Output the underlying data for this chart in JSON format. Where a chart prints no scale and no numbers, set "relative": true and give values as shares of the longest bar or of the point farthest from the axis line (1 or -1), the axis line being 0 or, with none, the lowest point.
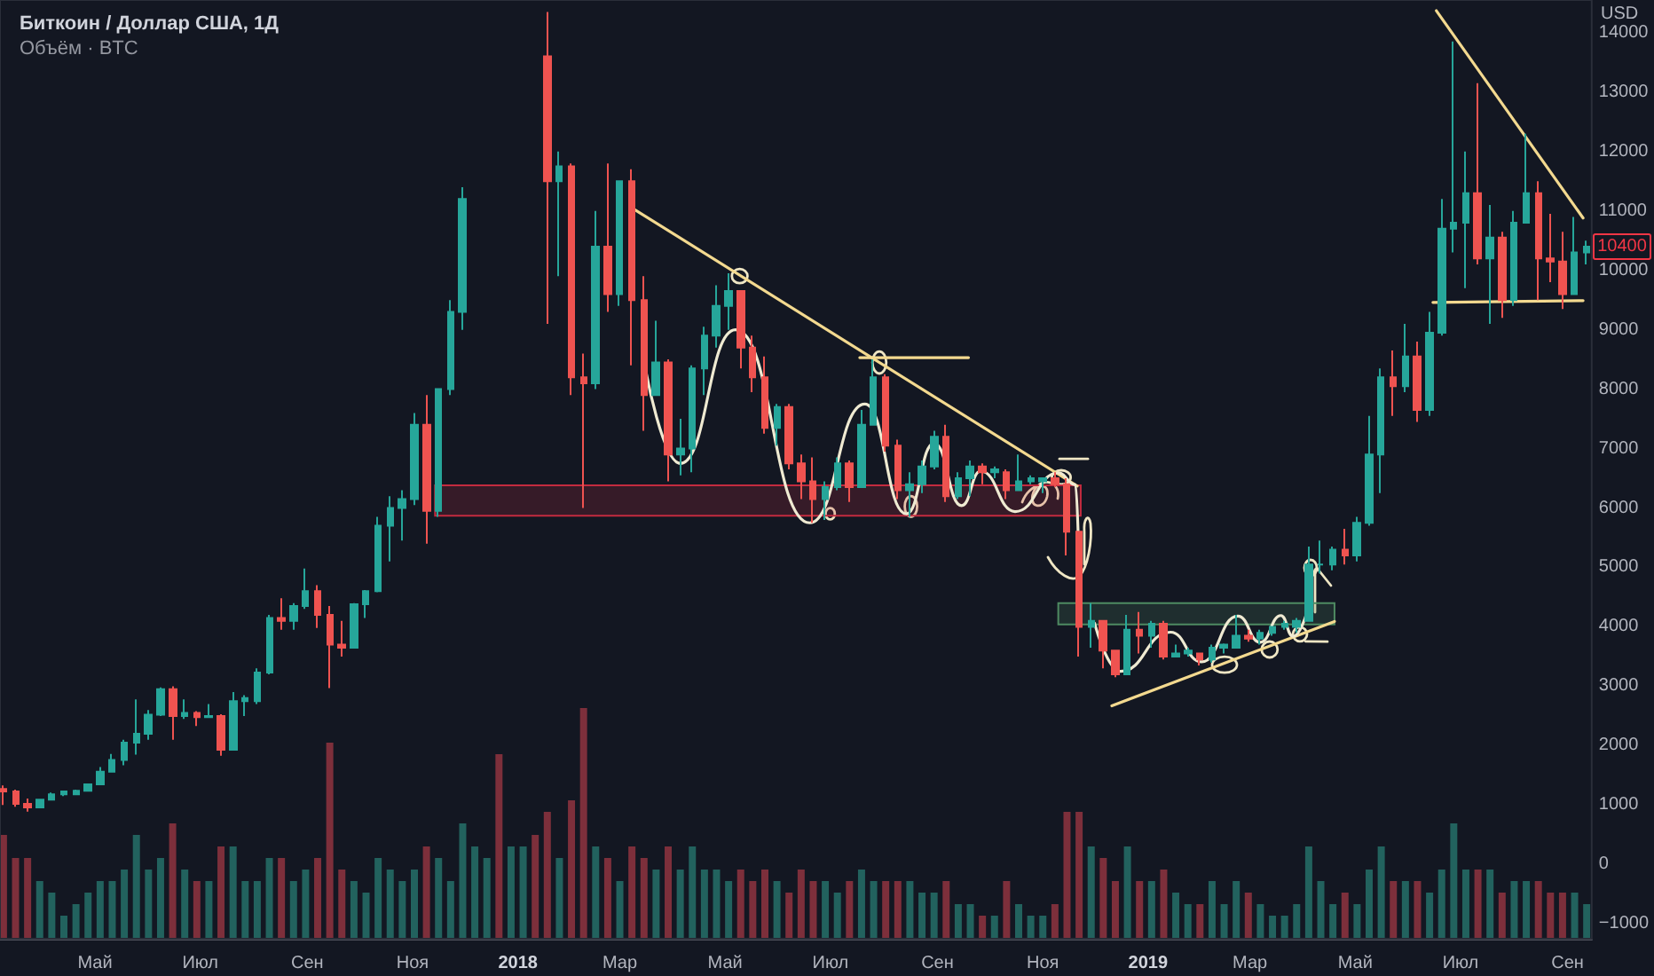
{
  "chart_data": [
    {
      "type": "candlestick",
      "title": "Биткоин / Доллар США, 1Д",
      "subtitle": "Объём · BTC",
      "ylabel": "USD",
      "x": [
        "2017-03-09",
        "2017-03-16",
        "2017-03-23",
        "2017-03-30",
        "2017-04-06",
        "2017-04-13",
        "2017-04-20",
        "2017-04-27",
        "2017-05-04",
        "2017-05-11",
        "2017-05-18",
        "2017-05-25",
        "2017-06-01",
        "2017-06-08",
        "2017-06-15",
        "2017-06-22",
        "2017-06-29",
        "2017-07-06",
        "2017-07-13",
        "2017-07-20",
        "2017-07-27",
        "2017-08-03",
        "2017-08-10",
        "2017-08-17",
        "2017-08-24",
        "2017-08-31",
        "2017-09-07",
        "2017-09-14",
        "2017-09-21",
        "2017-09-28",
        "2017-10-05",
        "2017-10-12",
        "2017-10-19",
        "2017-10-26",
        "2017-11-02",
        "2017-11-09",
        "2017-11-16",
        "2017-11-23",
        "2017-11-30",
        "2018-01-18",
        "2018-01-25",
        "2018-02-01",
        "2018-02-08",
        "2018-02-15",
        "2018-02-22",
        "2018-03-01",
        "2018-03-08",
        "2018-03-15",
        "2018-03-22",
        "2018-03-29",
        "2018-04-05",
        "2018-04-12",
        "2018-04-19",
        "2018-04-26",
        "2018-05-03",
        "2018-05-10",
        "2018-05-17",
        "2018-05-24",
        "2018-05-31",
        "2018-06-07",
        "2018-06-14",
        "2018-06-21",
        "2018-06-28",
        "2018-07-05",
        "2018-07-12",
        "2018-07-19",
        "2018-07-26",
        "2018-08-02",
        "2018-08-09",
        "2018-08-16",
        "2018-08-23",
        "2018-08-30",
        "2018-09-06",
        "2018-09-13",
        "2018-09-20",
        "2018-09-27",
        "2018-10-04",
        "2018-10-11",
        "2018-10-18",
        "2018-10-25",
        "2018-11-01",
        "2018-11-08",
        "2018-11-15",
        "2018-11-22",
        "2018-11-29",
        "2018-12-06",
        "2018-12-13",
        "2018-12-20",
        "2018-12-27",
        "2019-01-03",
        "2019-01-10",
        "2019-01-17",
        "2019-01-24",
        "2019-01-31",
        "2019-02-07",
        "2019-02-14",
        "2019-02-21",
        "2019-02-28",
        "2019-03-07",
        "2019-03-14",
        "2019-03-21",
        "2019-03-28",
        "2019-04-04",
        "2019-04-11",
        "2019-04-18",
        "2019-04-25",
        "2019-05-02",
        "2019-05-09",
        "2019-05-16",
        "2019-05-23",
        "2019-05-30",
        "2019-06-06",
        "2019-06-13",
        "2019-06-20",
        "2019-06-27",
        "2019-07-04",
        "2019-07-11",
        "2019-07-18",
        "2019-07-25",
        "2019-08-01",
        "2019-08-08",
        "2019-08-15",
        "2019-08-22",
        "2019-08-29",
        "2019-09-05",
        "2019-09-12"
      ],
      "ohlc": [
        [
          1270,
          1330,
          1000,
          1230
        ],
        [
          1230,
          1260,
          970,
          1020
        ],
        [
          1020,
          1110,
          890,
          960
        ],
        [
          960,
          1100,
          950,
          1090
        ],
        [
          1090,
          1210,
          1080,
          1180
        ],
        [
          1180,
          1240,
          1150,
          1230
        ],
        [
          1180,
          1260,
          1170,
          1240
        ],
        [
          1240,
          1360,
          1230,
          1350
        ],
        [
          1350,
          1640,
          1340,
          1560
        ],
        [
          1560,
          1860,
          1560,
          1760
        ],
        [
          1760,
          2100,
          1670,
          2050
        ],
        [
          2050,
          2780,
          1850,
          2200
        ],
        [
          2200,
          2600,
          2100,
          2520
        ],
        [
          2520,
          2980,
          2500,
          2950
        ],
        [
          2950,
          3000,
          2100,
          2500
        ],
        [
          2500,
          2780,
          2450,
          2550
        ],
        [
          2550,
          2580,
          2330,
          2480
        ],
        [
          2480,
          2700,
          2470,
          2500
        ],
        [
          2500,
          2530,
          1830,
          1930
        ],
        [
          1930,
          2900,
          1920,
          2750
        ],
        [
          2750,
          2850,
          2500,
          2800
        ],
        [
          2750,
          3300,
          2700,
          3230
        ],
        [
          3230,
          4200,
          3200,
          4150
        ],
        [
          4150,
          4480,
          3950,
          4100
        ],
        [
          4100,
          4400,
          3950,
          4350
        ],
        [
          4350,
          4980,
          4300,
          4600
        ],
        [
          4600,
          4700,
          3980,
          4200
        ],
        [
          4200,
          4350,
          2970,
          3700
        ],
        [
          3700,
          4100,
          3500,
          3650
        ],
        [
          3650,
          4400,
          3650,
          4380
        ],
        [
          4380,
          4620,
          4150,
          4600
        ],
        [
          4600,
          5850,
          4580,
          5700
        ],
        [
          5700,
          6200,
          5100,
          6000
        ],
        [
          6000,
          6300,
          5450,
          6150
        ],
        [
          6150,
          7600,
          6050,
          7400
        ],
        [
          7400,
          7900,
          5400,
          5950
        ],
        [
          5950,
          8000,
          5850,
          8000
        ],
        [
          8000,
          9500,
          7900,
          9300
        ],
        [
          9300,
          11400,
          9000,
          11200
        ],
        [
          13600,
          14350,
          9100,
          11500
        ],
        [
          11500,
          12000,
          9900,
          11750
        ],
        [
          11750,
          11800,
          7900,
          8200
        ],
        [
          8200,
          8600,
          6000,
          8100
        ],
        [
          8100,
          11000,
          8000,
          10400
        ],
        [
          10400,
          11800,
          9300,
          9600
        ],
        [
          9600,
          11500,
          9400,
          11500
        ],
        [
          11500,
          11700,
          8400,
          9500
        ],
        [
          9500,
          9900,
          7300,
          7900
        ],
        [
          7900,
          9150,
          7900,
          8450
        ],
        [
          8450,
          8500,
          6450,
          6900
        ],
        [
          6900,
          7500,
          6550,
          7000
        ],
        [
          7000,
          8400,
          6600,
          8350
        ],
        [
          8350,
          9050,
          7900,
          8900
        ],
        [
          8900,
          9750,
          8700,
          9400
        ],
        [
          9400,
          9950,
          9000,
          9650
        ],
        [
          9650,
          9650,
          8350,
          8700
        ],
        [
          8700,
          8900,
          7950,
          8200
        ],
        [
          8200,
          8550,
          7250,
          7350
        ],
        [
          7350,
          7750,
          7050,
          7700
        ],
        [
          7700,
          7750,
          6650,
          6750
        ],
        [
          6750,
          6900,
          6150,
          6450
        ],
        [
          6450,
          6850,
          5750,
          6150
        ],
        [
          6150,
          6450,
          5800,
          6350
        ],
        [
          6350,
          6850,
          6300,
          6750
        ],
        [
          6750,
          6800,
          6100,
          6350
        ],
        [
          6350,
          7650,
          6350,
          7400
        ],
        [
          7400,
          8500,
          7400,
          8200
        ],
        [
          8200,
          8250,
          6950,
          7050
        ],
        [
          7050,
          7150,
          6150,
          6300
        ],
        [
          6300,
          6600,
          5850,
          6400
        ],
        [
          6400,
          6800,
          6250,
          6700
        ],
        [
          6700,
          7300,
          6650,
          7200
        ],
        [
          7200,
          7400,
          6100,
          6200
        ],
        [
          6200,
          6600,
          6150,
          6500
        ],
        [
          6500,
          6800,
          6200,
          6700
        ],
        [
          6700,
          6750,
          6400,
          6600
        ],
        [
          6600,
          6700,
          6500,
          6650
        ],
        [
          6600,
          6650,
          6150,
          6300
        ],
        [
          6300,
          6900,
          6300,
          6450
        ],
        [
          6450,
          6550,
          6400,
          6500
        ],
        [
          6450,
          6500,
          6250,
          6500
        ],
        [
          6500,
          6600,
          6350,
          6400
        ],
        [
          6400,
          6500,
          5200,
          5600
        ],
        [
          5600,
          5600,
          3500,
          4000
        ],
        [
          4000,
          4400,
          3650,
          4100
        ],
        [
          4100,
          4100,
          3300,
          3600
        ],
        [
          3600,
          3600,
          3150,
          3200
        ],
        [
          3200,
          4200,
          3200,
          3950
        ],
        [
          3950,
          4250,
          3550,
          3850
        ],
        [
          3850,
          4100,
          3650,
          4050
        ],
        [
          4050,
          4100,
          3450,
          3500
        ],
        [
          3500,
          3700,
          3500,
          3550
        ],
        [
          3550,
          3650,
          3500,
          3600
        ],
        [
          3550,
          3550,
          3350,
          3450
        ],
        [
          3450,
          3700,
          3400,
          3650
        ],
        [
          3650,
          3720,
          3550,
          3700
        ],
        [
          3650,
          4200,
          3650,
          3850
        ],
        [
          3850,
          3950,
          3750,
          3800
        ],
        [
          3800,
          3950,
          3700,
          3900
        ],
        [
          3900,
          4000,
          3850,
          4000
        ],
        [
          4000,
          4100,
          3950,
          4050
        ],
        [
          4000,
          4150,
          3900,
          4100
        ],
        [
          4100,
          5350,
          4100,
          5050
        ],
        [
          5050,
          5450,
          4900,
          5050
        ],
        [
          5050,
          5350,
          4950,
          5300
        ],
        [
          5300,
          5650,
          5050,
          5200
        ],
        [
          5200,
          5850,
          5100,
          5750
        ],
        [
          5750,
          7550,
          5700,
          6900
        ],
        [
          6900,
          8350,
          6250,
          8200
        ],
        [
          8200,
          8650,
          7550,
          8050
        ],
        [
          8050,
          9100,
          7950,
          8550
        ],
        [
          8550,
          8800,
          7450,
          7650
        ],
        [
          7650,
          9300,
          7550,
          8950
        ],
        [
          8950,
          11200,
          8900,
          10700
        ],
        [
          10700,
          13850,
          10300,
          10800
        ],
        [
          10800,
          12000,
          9700,
          11300
        ],
        [
          11300,
          13150,
          10100,
          10200
        ],
        [
          10200,
          11100,
          9100,
          10550
        ],
        [
          10550,
          10650,
          9200,
          9500
        ],
        [
          9500,
          11000,
          9400,
          10800
        ],
        [
          10800,
          12300,
          10800,
          11300
        ],
        [
          11300,
          11500,
          9500,
          10200
        ],
        [
          10200,
          10950,
          9800,
          10150
        ],
        [
          10150,
          10650,
          9350,
          9600
        ],
        [
          9600,
          10900,
          9600,
          10300
        ],
        [
          10300,
          10500,
          10100,
          10400
        ]
      ],
      "colors": [
        "#ef5350",
        "#ef5350",
        "#ef5350",
        "#26a69a",
        "#26a69a",
        "#26a69a",
        "#26a69a",
        "#26a69a",
        "#26a69a",
        "#26a69a",
        "#26a69a",
        "#26a69a",
        "#26a69a",
        "#26a69a",
        "#ef5350",
        "#26a69a",
        "#ef5350",
        "#26a69a",
        "#ef5350",
        "#26a69a",
        "#26a69a",
        "#26a69a",
        "#26a69a",
        "#ef5350",
        "#26a69a",
        "#26a69a",
        "#ef5350",
        "#ef5350",
        "#ef5350",
        "#26a69a",
        "#26a69a",
        "#26a69a",
        "#26a69a",
        "#26a69a",
        "#26a69a",
        "#ef5350",
        "#26a69a",
        "#26a69a",
        "#26a69a",
        "#ef5350",
        "#26a69a",
        "#ef5350",
        "#ef5350",
        "#26a69a",
        "#ef5350",
        "#26a69a",
        "#ef5350",
        "#ef5350",
        "#26a69a",
        "#ef5350",
        "#26a69a",
        "#26a69a",
        "#26a69a",
        "#26a69a",
        "#26a69a",
        "#ef5350",
        "#ef5350",
        "#ef5350",
        "#26a69a",
        "#ef5350",
        "#ef5350",
        "#ef5350",
        "#26a69a",
        "#26a69a",
        "#ef5350",
        "#26a69a",
        "#26a69a",
        "#ef5350",
        "#ef5350",
        "#26a69a",
        "#26a69a",
        "#26a69a",
        "#ef5350",
        "#26a69a",
        "#26a69a",
        "#ef5350",
        "#26a69a",
        "#ef5350",
        "#26a69a",
        "#26a69a",
        "#26a69a",
        "#ef5350",
        "#ef5350",
        "#ef5350",
        "#26a69a",
        "#ef5350",
        "#ef5350",
        "#26a69a",
        "#ef5350",
        "#26a69a",
        "#ef5350",
        "#26a69a",
        "#26a69a",
        "#ef5350",
        "#26a69a",
        "#26a69a",
        "#26a69a",
        "#ef5350",
        "#26a69a",
        "#26a69a",
        "#26a69a",
        "#26a69a",
        "#26a69a",
        "#26a69a",
        "#26a69a",
        "#ef5350",
        "#26a69a",
        "#26a69a",
        "#26a69a",
        "#ef5350",
        "#26a69a",
        "#ef5350",
        "#26a69a",
        "#26a69a",
        "#26a69a",
        "#26a69a",
        "#ef5350",
        "#26a69a",
        "#ef5350",
        "#26a69a",
        "#26a69a",
        "#ef5350",
        "#ef5350",
        "#ef5350",
        "#26a69a",
        "#26a69a"
      ],
      "series": [
        {
          "type": "line",
          "color": "#c42b3f",
          "x": [
            "2017-11-14",
            "2018-11-23"
          ],
          "values": [
            null,
            null
          ],
          "lower": [
            5870,
            5870
          ],
          "upper": [
            6380,
            6380
          ]
        },
        {
          "type": "line",
          "color": "#4e8a62",
          "x": [
            "2018-11-10",
            "2019-04-19"
          ],
          "values": [
            null,
            null
          ],
          "lower": [
            4040,
            4040
          ],
          "upper": [
            4400,
            4400
          ]
        },
        {
          "type": "line",
          "color": "#f3d98f",
          "x": [
            "2018-03-07",
            "2018-11-21"
          ],
          "values": [
            11070,
            6370
          ]
        },
        {
          "type": "line",
          "color": "#f3d98f",
          "x": [
            "2018-07-18",
            "2018-09-19"
          ],
          "values": [
            8530,
            8530
          ]
        },
        {
          "type": "line",
          "color": "#f3d98f",
          "x": [
            "2018-12-11",
            "2019-04-19"
          ],
          "values": [
            2670,
            4090
          ]
        },
        {
          "type": "line",
          "color": "#f3d98f",
          "x": [
            "2019-06-17",
            "2019-09-10"
          ],
          "values": [
            14370,
            10880
          ]
        },
        {
          "type": "line",
          "color": "#f3d98f",
          "x": [
            "2019-06-15",
            "2019-09-10"
          ],
          "values": [
            9460,
            9490
          ]
        },
        {
          "type": "line",
          "color": "#efead2",
          "x": [
            "2018-03-16",
            "2018-04-05",
            "2018-05-07",
            "2018-06-19",
            "2018-07-21",
            "2018-08-14",
            "2018-08-30",
            "2018-09-15",
            "2018-09-26",
            "2018-10-16",
            "2018-11-10",
            "2018-11-20",
            "2018-11-22"
          ],
          "values": [
            8320,
            6750,
            9000,
            5750,
            7750,
            5900,
            7090,
            6040,
            6620,
            5940,
            6590,
            6390,
            5000
          ]
        },
        {
          "type": "line",
          "color": "#efead2",
          "x": [
            "2018-12-01",
            "2018-12-16",
            "2019-01-14",
            "2019-02-01",
            "2019-02-22",
            "2019-03-07",
            "2019-03-19",
            "2019-03-26",
            "2019-04-03"
          ],
          "values": [
            4060,
            3250,
            3910,
            3410,
            4180,
            3740,
            4190,
            3840,
            4240
          ]
        }
      ],
      "xlim": [
        "2017-03-07",
        "2019-09-15"
      ],
      "ylim": [
        -1250,
        14550
      ],
      "xticks": [
        {
          "value": "2017-05",
          "label": "Май"
        },
        {
          "value": "2017-07",
          "label": "Июл"
        },
        {
          "value": "2017-09",
          "label": "Сен"
        },
        {
          "value": "2017-11",
          "label": "Ноя"
        },
        {
          "value": "2018-01",
          "label": "2018"
        },
        {
          "value": "2018-03",
          "label": "Мар"
        },
        {
          "value": "2018-05",
          "label": "Май"
        },
        {
          "value": "2018-07",
          "label": "Июл"
        },
        {
          "value": "2018-09",
          "label": "Сен"
        },
        {
          "value": "2018-11",
          "label": "Ноя"
        },
        {
          "value": "2019-01",
          "label": "2019"
        },
        {
          "value": "2019-03",
          "label": "Мар"
        },
        {
          "value": "2019-05",
          "label": "Май"
        },
        {
          "value": "2019-07",
          "label": "Июл"
        },
        {
          "value": "2019-09",
          "label": "Сен"
        }
      ],
      "yticks": [
        {
          "value": -1000,
          "label": "−1000"
        },
        0,
        1000,
        2000,
        3000,
        4000,
        5000,
        6000,
        7000,
        8000,
        9000,
        10000,
        11000,
        12000,
        13000,
        14000
      ],
      "annotations": [
        {
          "text": "10400",
          "y": 10400
        }
      ]
    },
    {
      "type": "bar",
      "relative": true,
      "tick_labels": false,
      "xlim": [
        "2017-03-07",
        "2019-09-15"
      ],
      "x": [
        "2017-03-09",
        "2017-03-16",
        "2017-03-23",
        "2017-03-30",
        "2017-04-06",
        "2017-04-13",
        "2017-04-20",
        "2017-04-27",
        "2017-05-04",
        "2017-05-11",
        "2017-05-18",
        "2017-05-25",
        "2017-06-01",
        "2017-06-08",
        "2017-06-15",
        "2017-06-22",
        "2017-06-29",
        "2017-07-06",
        "2017-07-13",
        "2017-07-20",
        "2017-07-27",
        "2017-08-03",
        "2017-08-10",
        "2017-08-17",
        "2017-08-24",
        "2017-08-31",
        "2017-09-07",
        "2017-09-14",
        "2017-09-21",
        "2017-09-28",
        "2017-10-05",
        "2017-10-12",
        "2017-10-19",
        "2017-10-26",
        "2017-11-02",
        "2017-11-09",
        "2017-11-16",
        "2017-11-23",
        "2017-11-30",
        "2017-12-07",
        "2017-12-14",
        "2017-12-21",
        "2017-12-28",
        "2018-01-04",
        "2018-01-11",
        "2018-01-18",
        "2018-01-25",
        "2018-02-01",
        "2018-02-08",
        "2018-02-15",
        "2018-02-22",
        "2018-03-01",
        "2018-03-08",
        "2018-03-15",
        "2018-03-22",
        "2018-03-29",
        "2018-04-05",
        "2018-04-12",
        "2018-04-19",
        "2018-04-26",
        "2018-05-03",
        "2018-05-10",
        "2018-05-17",
        "2018-05-24",
        "2018-05-31",
        "2018-06-07",
        "2018-06-14",
        "2018-06-21",
        "2018-06-28",
        "2018-07-05",
        "2018-07-12",
        "2018-07-19",
        "2018-07-26",
        "2018-08-02",
        "2018-08-09",
        "2018-08-16",
        "2018-08-23",
        "2018-08-30",
        "2018-09-06",
        "2018-09-13",
        "2018-09-20",
        "2018-09-27",
        "2018-10-04",
        "2018-10-11",
        "2018-10-18",
        "2018-10-25",
        "2018-11-01",
        "2018-11-08",
        "2018-11-15",
        "2018-11-22",
        "2018-11-29",
        "2018-12-06",
        "2018-12-13",
        "2018-12-20",
        "2018-12-27",
        "2019-01-03",
        "2019-01-10",
        "2019-01-17",
        "2019-01-24",
        "2019-01-31",
        "2019-02-07",
        "2019-02-14",
        "2019-02-21",
        "2019-02-28",
        "2019-03-07",
        "2019-03-14",
        "2019-03-21",
        "2019-03-28",
        "2019-04-04",
        "2019-04-11",
        "2019-04-18",
        "2019-04-25",
        "2019-05-02",
        "2019-05-09",
        "2019-05-16",
        "2019-05-23",
        "2019-05-30",
        "2019-06-06",
        "2019-06-13",
        "2019-06-20",
        "2019-06-27",
        "2019-07-04",
        "2019-07-11",
        "2019-07-18",
        "2019-07-25",
        "2019-08-01",
        "2019-08-08",
        "2019-08-15",
        "2019-08-22",
        "2019-08-29",
        "2019-09-05",
        "2019-09-12"
      ],
      "values": [
        0.45,
        0.35,
        0.35,
        0.25,
        0.2,
        0.1,
        0.15,
        0.2,
        0.25,
        0.25,
        0.3,
        0.45,
        0.3,
        0.35,
        0.5,
        0.3,
        0.25,
        0.25,
        0.4,
        0.4,
        0.25,
        0.25,
        0.35,
        0.35,
        0.25,
        0.3,
        0.35,
        0.85,
        0.3,
        0.25,
        0.2,
        0.35,
        0.3,
        0.25,
        0.3,
        0.4,
        0.35,
        0.25,
        0.5,
        0.4,
        0.35,
        0.8,
        0.4,
        0.4,
        0.45,
        0.55,
        0.35,
        0.6,
        1,
        0.4,
        0.35,
        0.25,
        0.4,
        0.35,
        0.3,
        0.4,
        0.3,
        0.4,
        0.3,
        0.3,
        0.25,
        0.3,
        0.25,
        0.3,
        0.25,
        0.2,
        0.3,
        0.25,
        0.25,
        0.2,
        0.25,
        0.3,
        0.25,
        0.25,
        0.25,
        0.25,
        0.2,
        0.2,
        0.25,
        0.15,
        0.15,
        0.1,
        0.1,
        0.25,
        0.15,
        0.1,
        0.1,
        0.15,
        0.55,
        0.55,
        0.4,
        0.35,
        0.25,
        0.4,
        0.25,
        0.25,
        0.3,
        0.2,
        0.15,
        0.15,
        0.25,
        0.15,
        0.25,
        0.2,
        0.15,
        0.1,
        0.1,
        0.15,
        0.4,
        0.25,
        0.15,
        0.2,
        0.15,
        0.3,
        0.4,
        0.25,
        0.25,
        0.25,
        0.2,
        0.3,
        0.5,
        0.3,
        0.3,
        0.3,
        0.2,
        0.25,
        0.25,
        0.25,
        0.2,
        0.2,
        0.2,
        0.15
      ],
      "colors": [
        "#7d2f3b",
        "#7d2f3b",
        "#7d2f3b",
        "#22625e",
        "#22625e",
        "#22625e",
        "#22625e",
        "#22625e",
        "#22625e",
        "#22625e",
        "#22625e",
        "#22625e",
        "#22625e",
        "#22625e",
        "#7d2f3b",
        "#22625e",
        "#7d2f3b",
        "#22625e",
        "#7d2f3b",
        "#22625e",
        "#22625e",
        "#22625e",
        "#22625e",
        "#7d2f3b",
        "#22625e",
        "#22625e",
        "#7d2f3b",
        "#7d2f3b",
        "#7d2f3b",
        "#22625e",
        "#22625e",
        "#22625e",
        "#22625e",
        "#22625e",
        "#22625e",
        "#7d2f3b",
        "#22625e",
        "#22625e",
        "#22625e",
        "#22625e",
        "#22625e",
        "#7d2f3b",
        "#22625e",
        "#22625e",
        "#7d2f3b",
        "#7d2f3b",
        "#22625e",
        "#7d2f3b",
        "#7d2f3b",
        "#22625e",
        "#7d2f3b",
        "#22625e",
        "#7d2f3b",
        "#7d2f3b",
        "#22625e",
        "#7d2f3b",
        "#22625e",
        "#22625e",
        "#22625e",
        "#22625e",
        "#22625e",
        "#7d2f3b",
        "#7d2f3b",
        "#7d2f3b",
        "#22625e",
        "#7d2f3b",
        "#7d2f3b",
        "#7d2f3b",
        "#22625e",
        "#22625e",
        "#7d2f3b",
        "#22625e",
        "#22625e",
        "#7d2f3b",
        "#7d2f3b",
        "#22625e",
        "#22625e",
        "#22625e",
        "#7d2f3b",
        "#22625e",
        "#22625e",
        "#7d2f3b",
        "#22625e",
        "#7d2f3b",
        "#22625e",
        "#22625e",
        "#22625e",
        "#7d2f3b",
        "#7d2f3b",
        "#7d2f3b",
        "#22625e",
        "#7d2f3b",
        "#7d2f3b",
        "#22625e",
        "#7d2f3b",
        "#22625e",
        "#7d2f3b",
        "#22625e",
        "#22625e",
        "#7d2f3b",
        "#22625e",
        "#22625e",
        "#22625e",
        "#7d2f3b",
        "#22625e",
        "#22625e",
        "#22625e",
        "#22625e",
        "#22625e",
        "#22625e",
        "#22625e",
        "#7d2f3b",
        "#22625e",
        "#22625e",
        "#22625e",
        "#7d2f3b",
        "#22625e",
        "#7d2f3b",
        "#22625e",
        "#22625e",
        "#22625e",
        "#22625e",
        "#7d2f3b",
        "#22625e",
        "#7d2f3b",
        "#22625e",
        "#22625e",
        "#7d2f3b",
        "#7d2f3b",
        "#7d2f3b",
        "#22625e",
        "#22625e"
      ]
    }
  ]
}
